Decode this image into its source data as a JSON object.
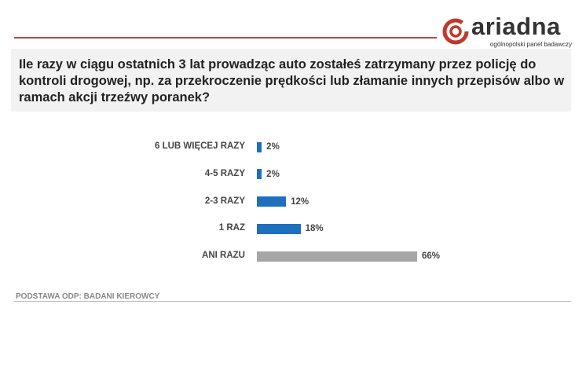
{
  "logo": {
    "name": "ariadna",
    "tagline": "ogólnopolski panel badawczy",
    "color": "#c0392b"
  },
  "question": "Ile razy w ciągu ostatnich 3 lat prowadząc auto zostałeś zatrzymany przez policję do kontroli drogowej, np. za przekroczenie prędkości lub złamanie innych przepisów albo w ramach akcji trzeźwy poranek?",
  "chart_data": {
    "type": "bar",
    "orientation": "horizontal",
    "categories": [
      "6 LUB WIĘCEJ RAZY",
      "4-5 RAZY",
      "2-3 RAZY",
      "1 RAZ",
      "ANI RAZU"
    ],
    "values": [
      2,
      2,
      12,
      18,
      66
    ],
    "labels": [
      "2%",
      "2%",
      "12%",
      "18%",
      "66%"
    ],
    "colors": [
      "#1f6fbf",
      "#1f6fbf",
      "#1f6fbf",
      "#1f6fbf",
      "#a6a6a6"
    ],
    "unit": "%",
    "grid": false
  },
  "footer": "PODSTAWA ODP: BADANI KIEROWCY"
}
